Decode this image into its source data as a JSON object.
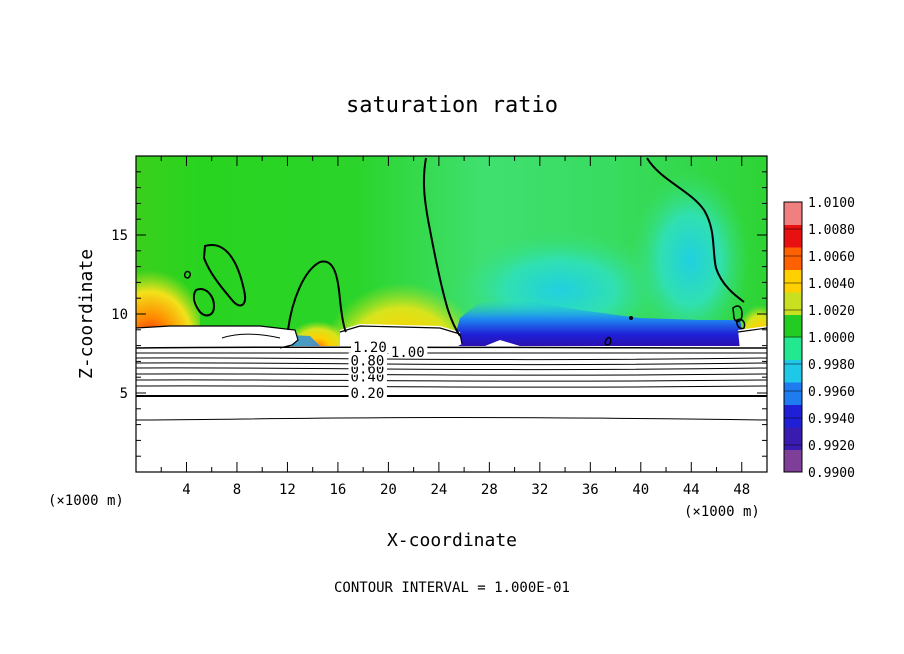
{
  "chart_data": {
    "type": "heatmap",
    "title": "saturation ratio",
    "xlabel": "X-coordinate",
    "ylabel": "Z-coordinate",
    "x_unit_label": "(×1000 m)",
    "z_unit_label": "(×1000 m)",
    "xlim": [
      0,
      50
    ],
    "ylim": [
      0,
      20
    ],
    "x_ticks": [
      "4",
      "8",
      "12",
      "16",
      "20",
      "24",
      "28",
      "32",
      "36",
      "40",
      "44",
      "48"
    ],
    "y_ticks": [
      "5",
      "10",
      "15"
    ],
    "colorbar": {
      "min": 0.99,
      "max": 1.01,
      "labels": [
        "1.0100",
        "1.0080",
        "1.0060",
        "1.0040",
        "1.0020",
        "1.0000",
        "0.9980",
        "0.9960",
        "0.9940",
        "0.9920",
        "0.9900"
      ],
      "colors": [
        "#7f3f98",
        "#3a1bb0",
        "#1f1fd8",
        "#1e7cf0",
        "#20c8e8",
        "#22e890",
        "#22cc22",
        "#c8e020",
        "#ffd000",
        "#ff6000",
        "#e81010",
        "#f08080"
      ]
    },
    "contour_labels": [
      {
        "text": "0.20",
        "x": 17,
        "z": 5.0
      },
      {
        "text": "0.40",
        "x": 17,
        "z": 6.05
      },
      {
        "text": "0.60",
        "x": 17,
        "z": 6.55
      },
      {
        "text": "0.80",
        "x": 17,
        "z": 7.05
      },
      {
        "text": "1.20",
        "x": 17.2,
        "z": 7.9
      },
      {
        "text": "1.00",
        "x": 20.2,
        "z": 7.6
      }
    ],
    "contour_interval_text": "CONTOUR INTERVAL = 1.000E-01"
  }
}
